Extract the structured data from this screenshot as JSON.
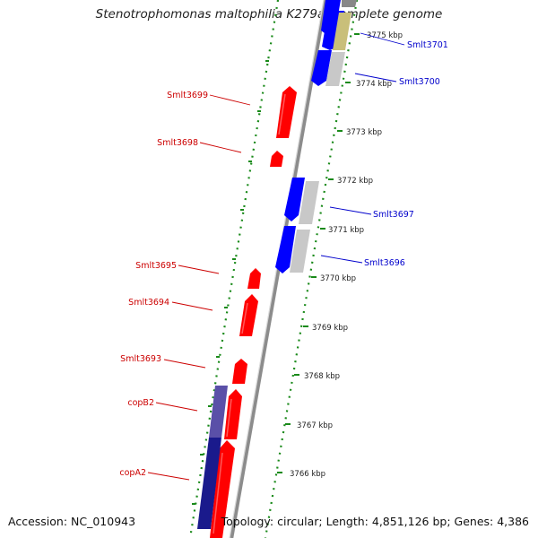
{
  "title": "Stenotrophomonas maltophilia K279a, complete genome",
  "accession": "Accession: NC_010943",
  "topology": "Topology: circular; Length: 4,851,126 bp; Genes: 4,386",
  "colors": {
    "forward_gene": "#ff0000",
    "reverse_gene": "#0000ff",
    "gray_feature": "#c8c8c8",
    "tan_feature": "#c9bf7a",
    "navy_feature": "#1a1a8c",
    "purple_feature": "#5a50a8",
    "backbone": "#8c8c8c",
    "dotted_guide": "#1a8a1a",
    "forward_label": "#cc0000",
    "reverse_label": "#0000cc"
  },
  "scale_ticks": [
    "3775 kbp",
    "3774 kbp",
    "3773 kbp",
    "3772 kbp",
    "3771 kbp",
    "3770 kbp",
    "3769 kbp",
    "3768 kbp",
    "3767 kbp",
    "3766 kbp"
  ],
  "forward_genes": [
    "Smlt3699",
    "Smlt3698",
    "Smlt3695",
    "Smlt3694",
    "Smlt3693",
    "copB2",
    "copA2"
  ],
  "reverse_genes": [
    "Smlt3701",
    "Smlt3700",
    "Smlt3697",
    "Smlt3696"
  ]
}
